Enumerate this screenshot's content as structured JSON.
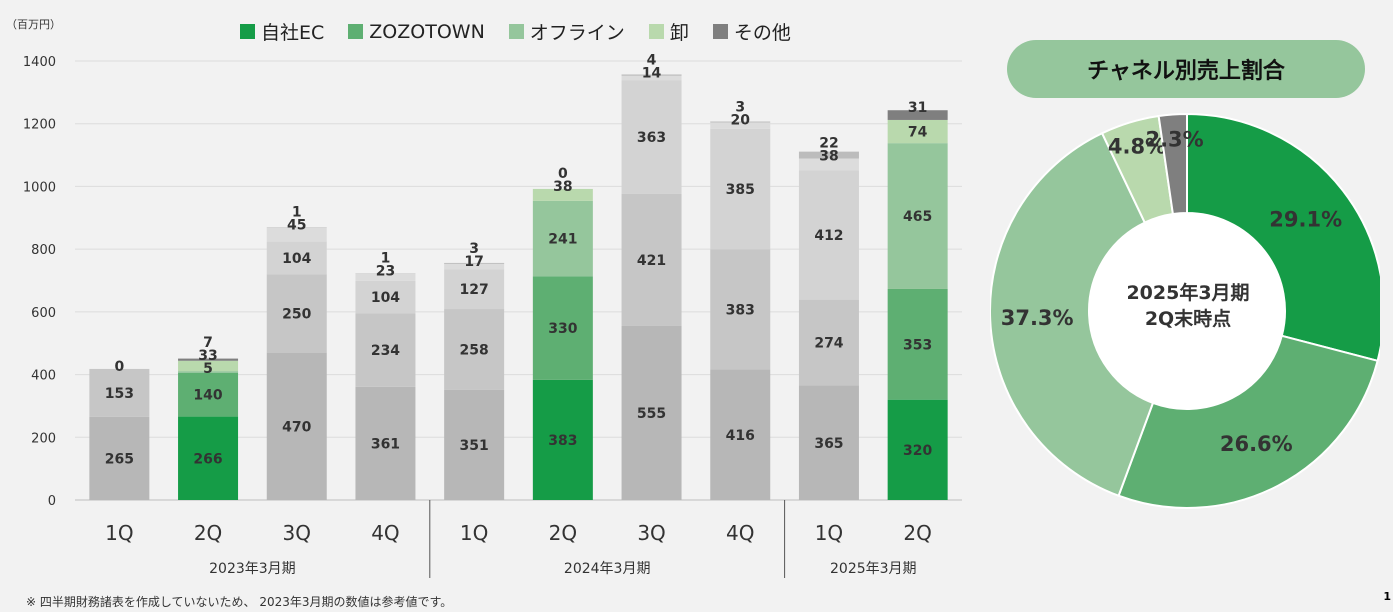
{
  "unit_label": "（百万円）",
  "footnote": "※ 四半期財務諸表を作成していないため、 2023年3月期の数値は参考値です。",
  "page_number": "1",
  "legend": [
    {
      "label": "自社EC",
      "color": "#159c47"
    },
    {
      "label": "ZOZOTOWN",
      "color": "#5eaf72"
    },
    {
      "label": "オフライン",
      "color": "#95c69c"
    },
    {
      "label": "卸",
      "color": "#b9d9ad"
    },
    {
      "label": "その他",
      "color": "#7f7f7f"
    }
  ],
  "donut_title": "チャネル別売上割合",
  "donut_center": [
    "2025年3月期",
    "2Q末時点"
  ],
  "chart_data": [
    {
      "type": "bar",
      "stacked": true,
      "ylim": [
        0,
        1400
      ],
      "yticks": [
        0,
        200,
        400,
        600,
        800,
        1000,
        1200,
        1400
      ],
      "grid": true,
      "legend_position": "top",
      "categories": [
        "1Q",
        "2Q",
        "3Q",
        "4Q",
        "1Q",
        "2Q",
        "3Q",
        "4Q",
        "1Q",
        "2Q"
      ],
      "groups": [
        {
          "label": "2023年3月期",
          "count": 4
        },
        {
          "label": "2024年3月期",
          "count": 4
        },
        {
          "label": "2025年3月期",
          "count": 2
        }
      ],
      "highlighted": [
        false,
        true,
        false,
        false,
        false,
        true,
        false,
        false,
        false,
        true
      ],
      "series": [
        {
          "name": "自社EC",
          "values": [
            265,
            266,
            470,
            361,
            351,
            383,
            555,
            416,
            365,
            320
          ]
        },
        {
          "name": "ZOZOTOWN",
          "values": [
            153,
            140,
            250,
            234,
            258,
            330,
            421,
            383,
            274,
            353
          ]
        },
        {
          "name": "オフライン",
          "values": [
            0,
            5,
            104,
            104,
            127,
            241,
            363,
            385,
            412,
            465
          ]
        },
        {
          "name": "卸",
          "values": [
            0,
            33,
            45,
            23,
            17,
            38,
            14,
            20,
            38,
            74
          ]
        },
        {
          "name": "その他",
          "values": [
            0,
            7,
            1,
            1,
            3,
            0,
            4,
            3,
            22,
            31
          ]
        }
      ],
      "labels": [
        [
          "265",
          "153",
          "",
          "",
          "0"
        ],
        [
          "266",
          "140",
          "5",
          "33",
          "7"
        ],
        [
          "470",
          "250",
          "104",
          "45",
          "1"
        ],
        [
          "361",
          "234",
          "104",
          "23",
          "1"
        ],
        [
          "351",
          "258",
          "127",
          "17",
          "3"
        ],
        [
          "383",
          "330",
          "241",
          "38",
          "0"
        ],
        [
          "555",
          "421",
          "363",
          "14",
          "4"
        ],
        [
          "416",
          "383",
          "385",
          "20",
          "3"
        ],
        [
          "365",
          "274",
          "412",
          "38",
          "22"
        ],
        [
          "320",
          "353",
          "465",
          "74",
          "31"
        ]
      ],
      "muted_colors": [
        "#b7b7b7",
        "#c6c6c6",
        "#d3d3d3",
        "#dcdcdc",
        "#bcbcbc"
      ]
    },
    {
      "type": "pie",
      "donut": true,
      "slices": [
        {
          "name": "自社EC",
          "value": 29.1,
          "label": "29.1%",
          "color": "#159c47"
        },
        {
          "name": "ZOZOTOWN",
          "value": 26.6,
          "label": "26.6%",
          "color": "#5eaf72"
        },
        {
          "name": "オフライン",
          "value": 37.3,
          "label": "37.3%",
          "color": "#95c69c"
        },
        {
          "name": "卸",
          "value": 4.8,
          "label": "4.8%",
          "color": "#b9d9ad"
        },
        {
          "name": "その他",
          "value": 2.3,
          "label": "2.3%",
          "color": "#7f7f7f"
        }
      ]
    }
  ]
}
